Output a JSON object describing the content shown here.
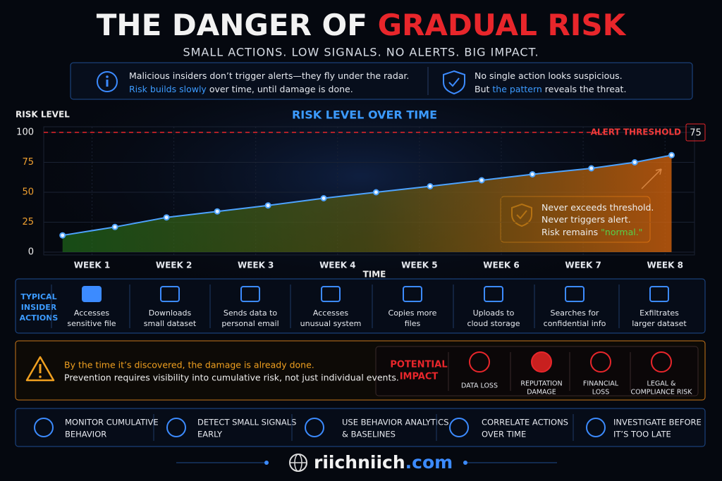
{
  "header": {
    "title_start": "THE DANGER OF ",
    "title_highlight": "GRADUAL RISK",
    "subtitle": "SMALL ACTIONS. LOW SIGNALS. NO ALERTS. BIG IMPACT."
  },
  "info": [
    {
      "line1": "Malicious insiders don’t trigger alerts—they fly under the radar.",
      "highlight": "Risk builds slowly",
      "line2_rest": " over time, until damage is done."
    },
    {
      "line1": "No single action looks suspicious.",
      "line2_start": "But ",
      "highlight": "the pattern",
      "line2_rest": " reveals the threat."
    }
  ],
  "chart_data": {
    "type": "line",
    "title": "RISK LEVEL OVER TIME",
    "y_label": "RISK LEVEL",
    "x_label": "TIME",
    "x": [
      0.64,
      1.28,
      1.91,
      2.53,
      3.15,
      3.83,
      4.47,
      5.13,
      5.76,
      6.38,
      7.1,
      7.63,
      8.08
    ],
    "series": [
      {
        "name": "Risk level",
        "color": "#4da3ff",
        "values": [
          14,
          21,
          29,
          34,
          39,
          45,
          50,
          55,
          60,
          65,
          70,
          75,
          81
        ]
      }
    ],
    "xlim": [
      0.41,
      8.36
    ],
    "ylim": [
      0,
      100
    ],
    "xticks": [
      {
        "value": 1,
        "label": "WEEK 1"
      },
      {
        "value": 2,
        "label": "WEEK 2"
      },
      {
        "value": 3,
        "label": "WEEK 3"
      },
      {
        "value": 4,
        "label": "WEEK 4"
      },
      {
        "value": 5,
        "label": "WEEK 5"
      },
      {
        "value": 6,
        "label": "WEEK 6"
      },
      {
        "value": 7,
        "label": "WEEK 7"
      },
      {
        "value": 8,
        "label": "WEEK 8"
      }
    ],
    "yticks": [
      0,
      25,
      50,
      75,
      100
    ],
    "threshold": 100,
    "threshold_label": "ALERT THRESHOLD",
    "threshold_box": "75",
    "callout": {
      "line1": "Never exceeds threshold.",
      "line2": "Never triggers alert.",
      "line3_start": "Risk remains ",
      "line3_highlight": "\"normal.\""
    },
    "grid": true
  },
  "actions": {
    "heading": [
      "TYPICAL",
      "INSIDER",
      "ACTIONS"
    ],
    "items": [
      [
        "Accesses",
        "sensitive file"
      ],
      [
        "Downloads",
        "small dataset"
      ],
      [
        "Sends data to",
        "personal email"
      ],
      [
        "Accesses",
        "unusual system"
      ],
      [
        "Copies more",
        "files"
      ],
      [
        "Uploads to",
        "cloud storage"
      ],
      [
        "Searches for",
        "confidential info"
      ],
      [
        "Exfiltrates",
        "larger dataset"
      ]
    ]
  },
  "warning": {
    "line1": "By the time it’s discovered, the damage is already done.",
    "line2": "Prevention requires visibility into cumulative risk, not just individual events."
  },
  "impact": {
    "heading": [
      "POTENTIAL",
      "IMPACT"
    ],
    "items": [
      [
        "DATA LOSS"
      ],
      [
        "REPUTATION",
        "DAMAGE"
      ],
      [
        "FINANCIAL",
        "LOSS"
      ],
      [
        "LEGAL &",
        "COMPLIANCE RISK"
      ]
    ]
  },
  "recommendations": [
    [
      "MONITOR CUMULATIVE",
      "BEHAVIOR"
    ],
    [
      "DETECT SMALL SIGNALS",
      "EARLY"
    ],
    [
      "USE BEHAVIOR ANALYTICS",
      "& BASELINES"
    ],
    [
      "CORRELATE ACTIONS",
      "OVER TIME"
    ],
    [
      "INVESTIGATE BEFORE",
      "IT’S TOO LATE"
    ]
  ],
  "footer": {
    "site": "riichniich",
    "domain": ".com"
  }
}
